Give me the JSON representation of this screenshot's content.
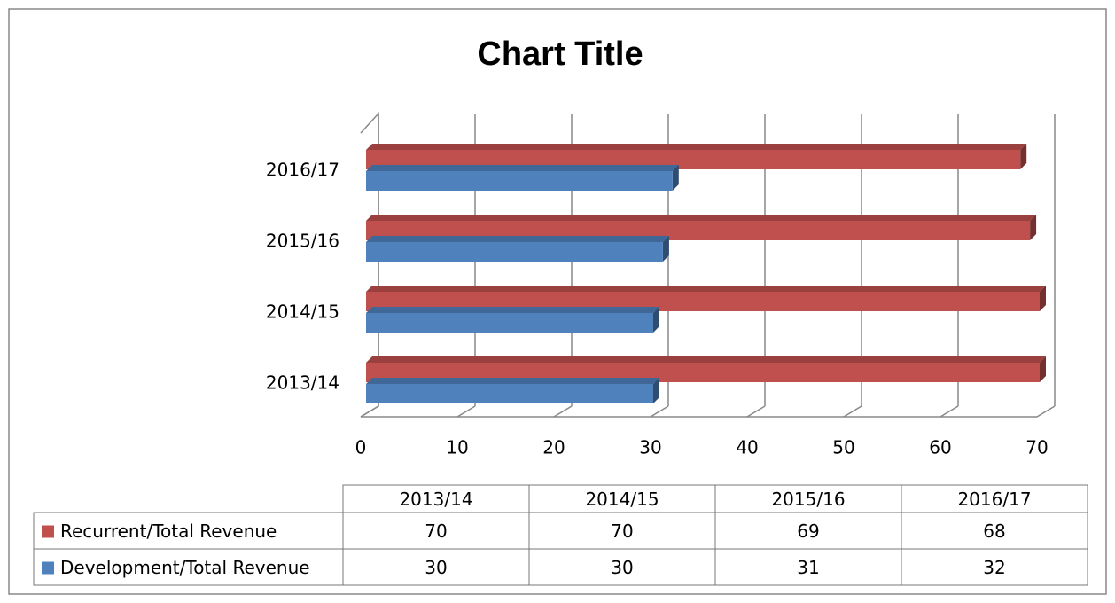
{
  "chart_data": {
    "type": "bar",
    "orientation": "horizontal",
    "title": "Chart Title",
    "categories": [
      "2013/14",
      "2014/15",
      "2015/16",
      "2016/17"
    ],
    "series": [
      {
        "name": "Recurrent/Total Revenue",
        "color": "#c0504d",
        "values": [
          70,
          70,
          69,
          68
        ]
      },
      {
        "name": "Development/Total Revenue",
        "color": "#4f81bd",
        "values": [
          30,
          30,
          31,
          32
        ]
      }
    ],
    "xlim": [
      0,
      70
    ],
    "xticks": [
      0,
      10,
      20,
      30,
      40,
      50,
      60,
      70
    ],
    "grid": true,
    "data_table": true
  }
}
